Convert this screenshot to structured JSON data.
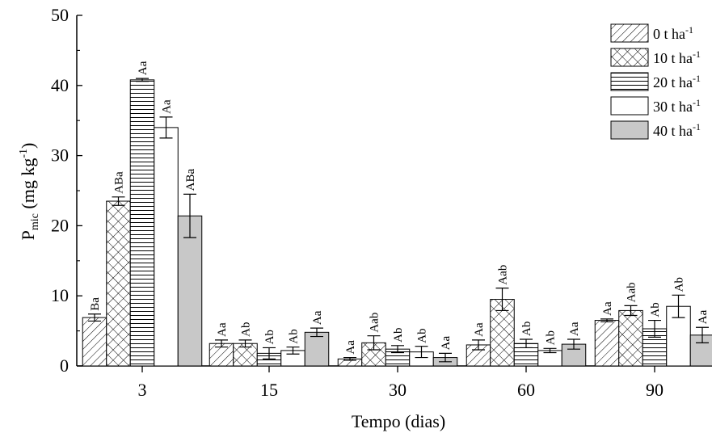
{
  "chart_data": {
    "type": "bar",
    "title": "",
    "xlabel": "Tempo (dias)",
    "ylabel": {
      "main": "P",
      "sub": "mic",
      "rest": " (mg kg",
      "sup": "-1",
      "close": ")"
    },
    "ylim": [
      0,
      50
    ],
    "yticks": [
      "0",
      "10",
      "20",
      "30",
      "40",
      "50"
    ],
    "categories": [
      "3",
      "15",
      "30",
      "60",
      "90"
    ],
    "legend_position": "top-right",
    "series": [
      {
        "name": "0 t ha",
        "sup": "-1",
        "pattern": "diag",
        "values": [
          6.9,
          3.2,
          1.0,
          3.0,
          6.5
        ],
        "errors": [
          0.5,
          0.5,
          0.2,
          0.7,
          0.2
        ],
        "labels": [
          "Ba",
          "Aa",
          "Aa",
          "Aa",
          "Aa"
        ]
      },
      {
        "name": "10 t ha",
        "sup": "-1",
        "pattern": "cross",
        "values": [
          23.5,
          3.2,
          3.3,
          9.5,
          7.9
        ],
        "errors": [
          0.6,
          0.5,
          1.0,
          1.6,
          0.7
        ],
        "labels": [
          "ABa",
          "Ab",
          "Aab",
          "Aab",
          "Aab"
        ]
      },
      {
        "name": "20 t ha",
        "sup": "-1",
        "pattern": "horiz",
        "values": [
          40.8,
          1.8,
          2.4,
          3.2,
          5.3
        ],
        "errors": [
          0.2,
          0.8,
          0.5,
          0.6,
          1.2
        ],
        "labels": [
          "Aa",
          "Ab",
          "Ab",
          "Ab",
          "Ab"
        ]
      },
      {
        "name": "30 t ha",
        "sup": "-1",
        "pattern": "white",
        "values": [
          34.0,
          2.2,
          2.0,
          2.2,
          8.5
        ],
        "errors": [
          1.5,
          0.5,
          0.8,
          0.3,
          1.6
        ],
        "labels": [
          "Aa",
          "Ab",
          "Ab",
          "Ab",
          "Ab"
        ]
      },
      {
        "name": "40 t ha",
        "sup": "-1",
        "pattern": "gray",
        "values": [
          21.4,
          4.8,
          1.2,
          3.1,
          4.4
        ],
        "errors": [
          3.1,
          0.6,
          0.6,
          0.7,
          1.1
        ],
        "labels": [
          "ABa",
          "Aa",
          "Aa",
          "Aa",
          "Aa"
        ]
      }
    ]
  }
}
